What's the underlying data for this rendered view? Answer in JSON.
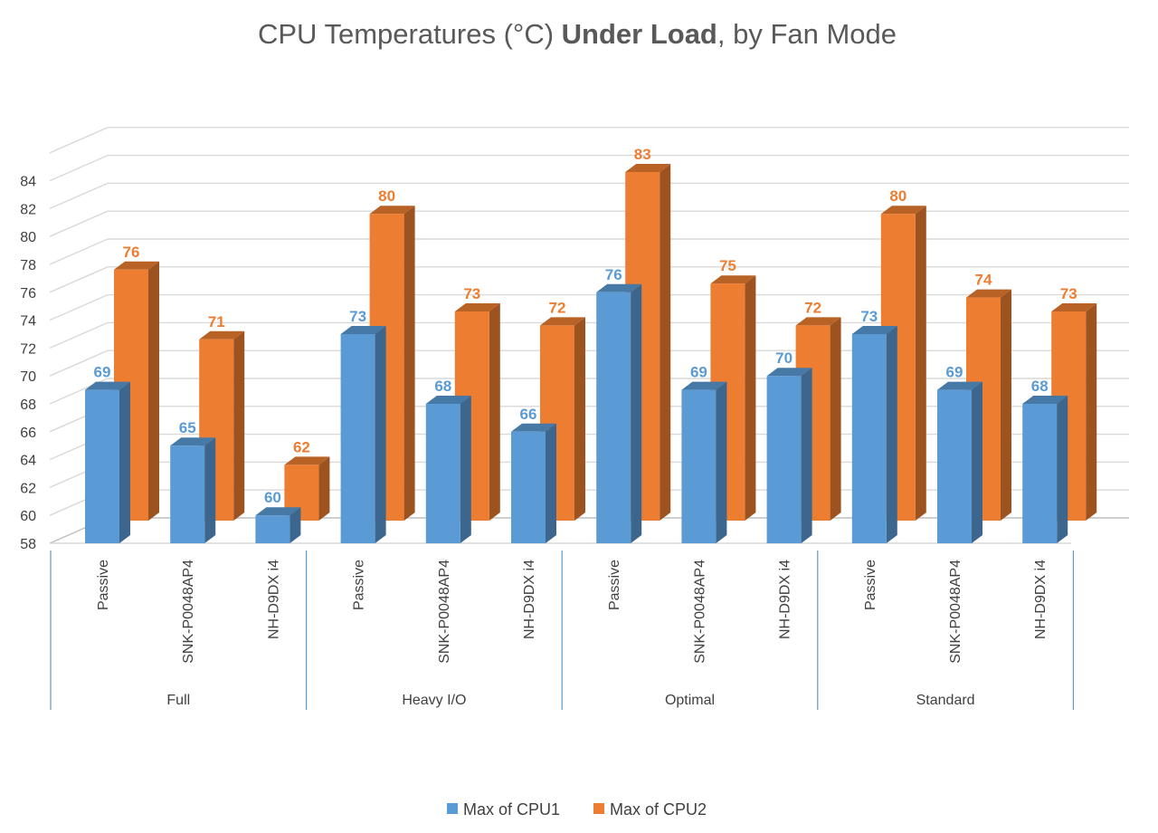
{
  "chart_data": {
    "type": "bar",
    "title_parts": [
      "CPU Temperatures (°C) ",
      "Under Load",
      ", by Fan Mode"
    ],
    "groups": [
      "Full",
      "Heavy I/O",
      "Optimal",
      "Standard"
    ],
    "subcategories": [
      "Passive",
      "SNK-P0048AP4",
      "NH-D9DX i4"
    ],
    "series": [
      {
        "name": "Max of CPU1",
        "color": "#5B9BD5",
        "values": [
          69,
          65,
          60,
          73,
          68,
          66,
          76,
          69,
          70,
          73,
          69,
          68
        ]
      },
      {
        "name": "Max of CPU2",
        "color": "#ED7D31",
        "values": [
          76,
          71,
          62,
          80,
          73,
          72,
          83,
          75,
          72,
          80,
          74,
          73
        ]
      }
    ],
    "y_ticks": [
      "58",
      "60",
      "62",
      "64",
      "66",
      "68",
      "70",
      "72",
      "74",
      "76",
      "78",
      "80",
      "82",
      "84"
    ],
    "ylim": [
      58,
      84
    ],
    "grid": true,
    "legend_position": "bottom"
  }
}
